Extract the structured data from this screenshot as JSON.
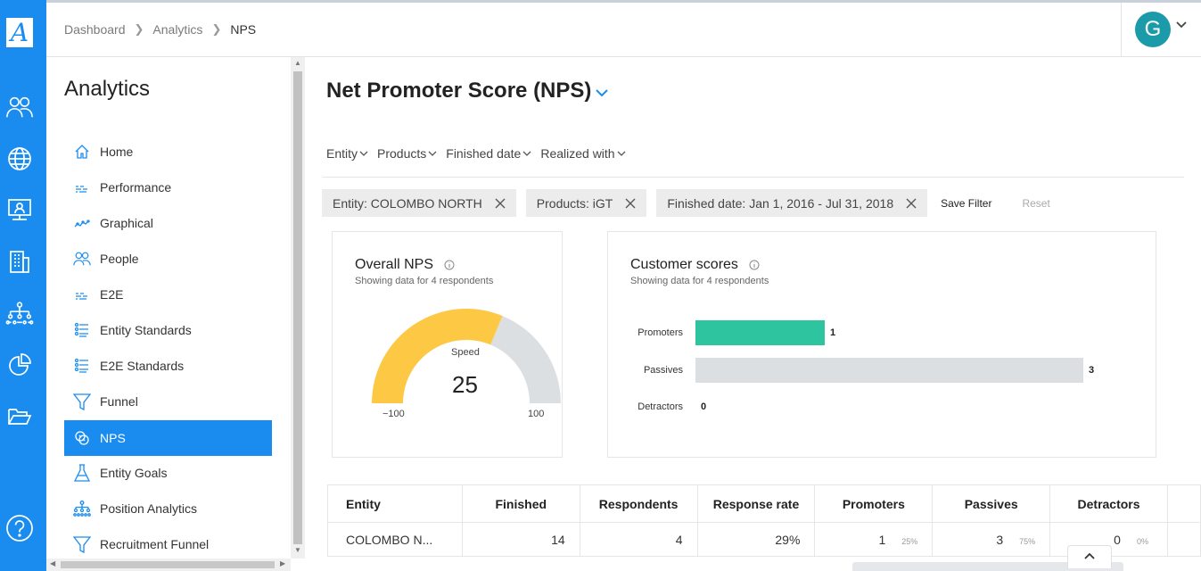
{
  "app": {
    "logo_letter": "A"
  },
  "rail": {
    "icons": [
      "people-icon",
      "globe-icon",
      "presentation-icon",
      "building-icon",
      "org-chart-icon",
      "pie-chart-icon",
      "folder-open-icon",
      "help-icon"
    ]
  },
  "breadcrumb": {
    "items": [
      "Dashboard",
      "Analytics",
      "NPS"
    ]
  },
  "user": {
    "avatar_letter": "G",
    "avatar_color": "#1b9aaa"
  },
  "sidebar": {
    "title": "Analytics",
    "items": [
      {
        "label": "Home",
        "icon": "home-icon"
      },
      {
        "label": "Performance",
        "icon": "performance-icon"
      },
      {
        "label": "Graphical",
        "icon": "graph-icon"
      },
      {
        "label": "People",
        "icon": "people-icon"
      },
      {
        "label": "E2E",
        "icon": "e2e-icon"
      },
      {
        "label": "Entity Standards",
        "icon": "list-icon"
      },
      {
        "label": "E2E Standards",
        "icon": "list-icon"
      },
      {
        "label": "Funnel",
        "icon": "funnel-icon"
      },
      {
        "label": "NPS",
        "icon": "nps-icon",
        "active": true
      },
      {
        "label": "Entity Goals",
        "icon": "flask-icon"
      },
      {
        "label": "Position Analytics",
        "icon": "org-chart-icon"
      },
      {
        "label": "Recruitment Funnel",
        "icon": "funnel-icon"
      }
    ]
  },
  "main": {
    "title": "Net Promoter Score (NPS)",
    "filters": [
      "Entity",
      "Products",
      "Finished date",
      "Realized with"
    ],
    "chips": [
      "Entity: COLOMBO NORTH",
      "Products: iGT",
      "Finished date: Jan 1, 2016 - Jul 31, 2018"
    ],
    "save_filter": "Save Filter",
    "reset": "Reset"
  },
  "overall_nps": {
    "title": "Overall NPS",
    "subtitle": "Showing data for 4 respondents",
    "gauge_label": "Speed",
    "value": "25",
    "min_label": "−100",
    "max_label": "100",
    "fill_color": "#fdc843",
    "track_color": "#dcdfe2"
  },
  "chart_data": {
    "type": "bar",
    "title": "Customer scores",
    "subtitle": "Showing data for 4 respondents",
    "categories": [
      "Promoters",
      "Passives",
      "Detractors"
    ],
    "values": [
      1,
      3,
      0
    ],
    "colors": [
      "#2ec4a0",
      "#dcdfe2",
      "#dcdfe2"
    ],
    "orientation": "horizontal"
  },
  "table": {
    "headers": [
      "Entity",
      "Finished",
      "Respondents",
      "Response rate",
      "Promoters",
      "Passives",
      "Detractors"
    ],
    "rows": [
      {
        "entity": "COLOMBO N...",
        "finished": "14",
        "respondents": "4",
        "response_rate": "29%",
        "promoters": "1",
        "promoters_pct": "25%",
        "passives": "3",
        "passives_pct": "75%",
        "detractors": "0",
        "detractors_pct": "0%"
      }
    ]
  }
}
